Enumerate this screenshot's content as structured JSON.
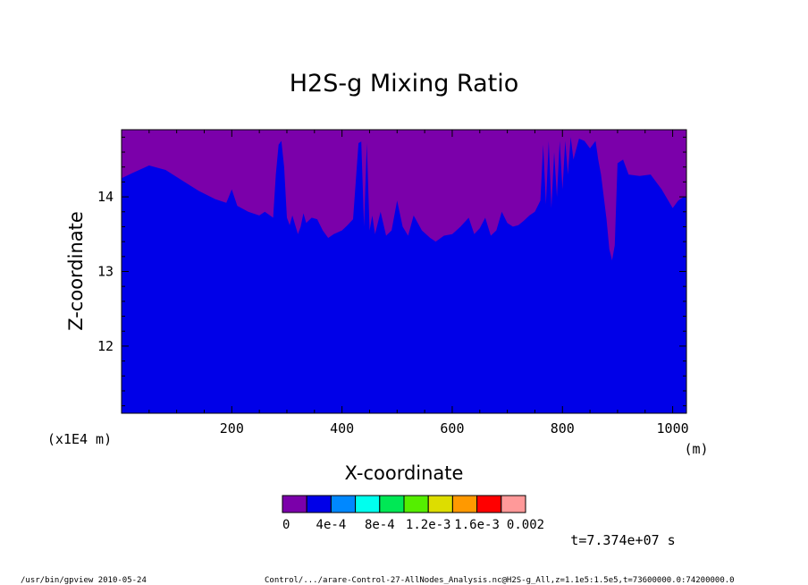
{
  "chart_data": {
    "type": "area",
    "title": "H2S-g Mixing Ratio",
    "xlabel": "X-coordinate",
    "ylabel": "Z-coordinate",
    "x_unit": "(m)",
    "y_unit": "(x1E4 m)",
    "xlim": [
      0,
      1025
    ],
    "ylim": [
      11.1,
      14.9
    ],
    "xticks": [
      "200",
      "400",
      "600",
      "800",
      "1000"
    ],
    "xtick_values": [
      200,
      400,
      600,
      800,
      1000
    ],
    "yticks": [
      "12",
      "13",
      "14"
    ],
    "ytick_values": [
      12,
      13,
      14
    ],
    "grid": false,
    "background_color": "#7b00aa",
    "fill_color": "#0000e8",
    "boundary": {
      "description_level": "lower level (0 to 4e-4) filled below this z-profile",
      "x": [
        0,
        20,
        50,
        80,
        110,
        140,
        170,
        190,
        200,
        210,
        230,
        250,
        260,
        275,
        280,
        285,
        290,
        295,
        300,
        305,
        310,
        320,
        325,
        330,
        335,
        345,
        355,
        365,
        375,
        385,
        400,
        410,
        420,
        430,
        435,
        440,
        445,
        450,
        455,
        460,
        470,
        480,
        490,
        500,
        510,
        520,
        530,
        545,
        560,
        570,
        585,
        600,
        615,
        630,
        640,
        650,
        660,
        670,
        680,
        690,
        700,
        710,
        720,
        730,
        740,
        750,
        760,
        765,
        770,
        775,
        780,
        785,
        790,
        795,
        800,
        805,
        810,
        815,
        820,
        830,
        840,
        850,
        860,
        865,
        870,
        875,
        880,
        885,
        890,
        895,
        900,
        910,
        920,
        940,
        960,
        980,
        1000,
        1010,
        1020,
        1025
      ],
      "y": [
        14.25,
        14.32,
        14.42,
        14.36,
        14.22,
        14.08,
        13.97,
        13.92,
        14.1,
        13.88,
        13.8,
        13.75,
        13.8,
        13.72,
        14.3,
        14.7,
        14.75,
        14.4,
        13.72,
        13.62,
        13.75,
        13.5,
        13.6,
        13.78,
        13.65,
        13.72,
        13.7,
        13.55,
        13.45,
        13.5,
        13.55,
        13.62,
        13.7,
        14.72,
        14.74,
        13.6,
        14.72,
        13.55,
        13.75,
        13.5,
        13.8,
        13.48,
        13.55,
        13.95,
        13.6,
        13.48,
        13.75,
        13.55,
        13.45,
        13.4,
        13.48,
        13.5,
        13.6,
        13.72,
        13.5,
        13.58,
        13.72,
        13.48,
        13.55,
        13.8,
        13.65,
        13.6,
        13.62,
        13.68,
        13.75,
        13.8,
        13.95,
        14.7,
        13.9,
        14.75,
        13.85,
        14.6,
        14.0,
        14.75,
        14.1,
        14.75,
        14.3,
        14.8,
        14.5,
        14.78,
        14.75,
        14.65,
        14.75,
        14.5,
        14.3,
        14.0,
        13.7,
        13.3,
        13.15,
        13.35,
        14.45,
        14.5,
        14.3,
        14.28,
        14.3,
        14.1,
        13.85,
        13.95,
        14.0,
        14.0
      ]
    },
    "colorbar": {
      "colors": [
        "#7b00aa",
        "#0000e8",
        "#0088ff",
        "#00ffee",
        "#00e855",
        "#55ee00",
        "#dddd00",
        "#ff9900",
        "#ff0000",
        "#ff9999"
      ],
      "labels": [
        "0",
        "4e-4",
        "8e-4",
        "1.2e-3",
        "1.6e-3",
        "0.002"
      ]
    },
    "time_label": "t=7.374e+07 s"
  },
  "footer": {
    "left": "/usr/bin/gpview  2010-05-24",
    "right": "Control/.../arare-Control-27-AllNodes_Analysis.nc@H2S-g_All,z=1.1e5:1.5e5,t=73600000.0:74200000.0"
  }
}
